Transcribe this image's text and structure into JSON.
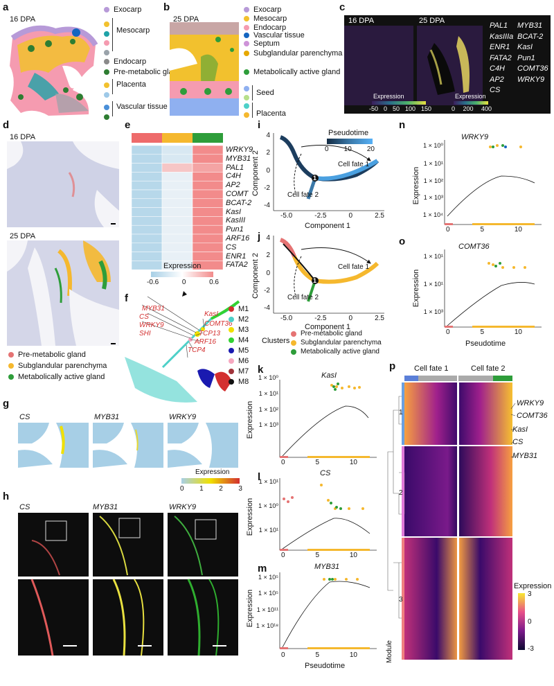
{
  "a": {
    "label": "a",
    "stage": "16 DPA",
    "legend": [
      "Exocarp",
      "Mesocarp",
      "Endocarp",
      "Pre-metabolic gland",
      "Placenta",
      "Vascular tissue"
    ],
    "colors": [
      "#b79ad8",
      "#f2c12e",
      "#f59bb0",
      "#9aa3aa",
      "#2e7d32",
      "#1565c0",
      "#1fa3a8",
      "#e57373"
    ]
  },
  "b": {
    "label": "b",
    "stage": "25 DPA",
    "legend": [
      "Exocarp",
      "Mesocarp",
      "Endocarp",
      "Vascular tissue",
      "Septum",
      "Subglandular parenchyma",
      "Metabolically active gland",
      "Seed",
      "Placenta"
    ]
  },
  "c": {
    "label": "c",
    "stage1": "16 DPA",
    "stage2": "25 DPA",
    "genes_col1": [
      "PAL1",
      "KasIIIa",
      "ENR1",
      "FATA2",
      "C4H",
      "AP2",
      "CS"
    ],
    "genes_col2": [
      "MYB31",
      "BCAT-2",
      "KasI",
      "Pun1",
      "COMT36",
      "WRKY9"
    ],
    "colorbar1_title": "Expression",
    "colorbar1_ticks": [
      "-50",
      "0",
      "50",
      "100",
      "150"
    ],
    "colorbar2_title": "Expression",
    "colorbar2_ticks": [
      "0",
      "200",
      "400"
    ]
  },
  "d": {
    "label": "d",
    "stage1": "16 DPA",
    "stage2": "25 DPA",
    "legend": [
      "Pre-metabolic gland",
      "Subglandular parenchyma",
      "Metabolically active gland"
    ],
    "legend_colors": [
      "#e57373",
      "#f5b82e",
      "#2e9d3a"
    ]
  },
  "e": {
    "label": "e",
    "genes": [
      "WRKY9",
      "MYB31",
      "PAL1",
      "C4H",
      "AP2",
      "COMT",
      "BCAT-2",
      "KasI",
      "KasIII",
      "Pun1",
      "ARF16",
      "CS",
      "ENR1",
      "FATA2"
    ],
    "colorbar_title": "Expression",
    "colorbar_ticks": [
      "-0.6",
      "0",
      "0.6"
    ],
    "header_colors": [
      "#ee6b6b",
      "#f5b82e",
      "#2e9d3a"
    ]
  },
  "f": {
    "label": "f",
    "genes_red": [
      "MYB31",
      "CS",
      "WRKY9",
      "SHI",
      "KasI",
      "COMT36",
      "TCP13",
      "ARF16",
      "TCP4"
    ],
    "modules": [
      "M1",
      "M2",
      "M3",
      "M4",
      "M5",
      "M6",
      "M7",
      "M8"
    ],
    "module_colors": [
      "#d32f2f",
      "#4dd0c8",
      "#f0e000",
      "#32d232",
      "#1a1ab0",
      "#f6a8c0",
      "#a0333a",
      "#111111"
    ]
  },
  "g": {
    "label": "g",
    "genes": [
      "CS",
      "MYB31",
      "WRKY9"
    ],
    "colorbar_title": "Expression",
    "colorbar_ticks": [
      "0",
      "1",
      "2",
      "3"
    ]
  },
  "h": {
    "label": "h",
    "genes": [
      "CS",
      "MYB31",
      "WRKY9"
    ]
  },
  "i": {
    "label": "i",
    "colorbar_title": "Pseudotime",
    "colorbar_ticks": [
      "0",
      "10",
      "20"
    ],
    "xlabel": "Component 1",
    "ylabel": "Component 2",
    "xticks": [
      "-5.0",
      "-2.5",
      "0",
      "2.5"
    ],
    "yticks": [
      "4",
      "2",
      "0",
      "-2",
      "-4"
    ],
    "fate1": "Cell fate 1",
    "fate2": "Cell fate 2",
    "node": "1"
  },
  "j": {
    "label": "j",
    "xlabel": "Component 1",
    "ylabel": "Component 2",
    "xticks": [
      "-5.0",
      "-2.5",
      "0",
      "2.5"
    ],
    "yticks": [
      "4",
      "2",
      "0",
      "-2",
      "-4"
    ],
    "fate1": "Cell fate 1",
    "fate2": "Cell fate 2",
    "node": "1",
    "clusters_title": "Clusters",
    "clusters": [
      "Pre-metabolic gland",
      "Subglandular parenchyma",
      "Metabolically active gland"
    ]
  },
  "k": {
    "label": "k",
    "gene": "KasI",
    "ylabel": "Expression",
    "yticks": [
      "1 × 10⁰",
      "1 × 10¹",
      "1 × 10²",
      "1 × 10³"
    ],
    "xticks": [
      "0",
      "5",
      "10"
    ]
  },
  "l": {
    "label": "l",
    "gene": "CS",
    "ylabel": "Expression",
    "yticks": [
      "1 × 10¹",
      "1 × 10⁰",
      "1 × 10¹"
    ],
    "xticks": [
      "0",
      "5",
      "10"
    ]
  },
  "m": {
    "label": "m",
    "gene": "MYB31",
    "ylabel": "Expression",
    "yticks": [
      "1 × 10⁵",
      "1 × 10⁵",
      "1 × 10¹¹",
      "1 × 10¹⁸"
    ],
    "xticks": [
      "0",
      "5",
      "10"
    ],
    "xlabel": "Pseudotime"
  },
  "n": {
    "label": "n",
    "gene": "WRKY9",
    "ylabel": "Expression",
    "yticks": [
      "1 × 10⁰",
      "1 × 10¹",
      "1 × 10²",
      "1 × 10³",
      "1 × 10⁴"
    ],
    "xticks": [
      "0",
      "5",
      "10"
    ]
  },
  "o": {
    "label": "o",
    "gene": "COMT36",
    "ylabel": "Expression",
    "yticks": [
      "1 × 10¹",
      "1 × 10¹",
      "1 × 10³"
    ],
    "xticks": [
      "0",
      "5",
      "10"
    ],
    "xlabel": "Pseudotime"
  },
  "p": {
    "label": "p",
    "fate1": "Cell fate 1",
    "fate2": "Cell fate 2",
    "module_label": "Module",
    "modules": [
      "1",
      "2",
      "3"
    ],
    "genes": [
      "WRKY9",
      "COMT36",
      "KasI",
      "CS",
      "MYB31"
    ],
    "colorbar_title": "Expression",
    "colorbar_ticks": [
      "3",
      "0",
      "-3"
    ]
  }
}
